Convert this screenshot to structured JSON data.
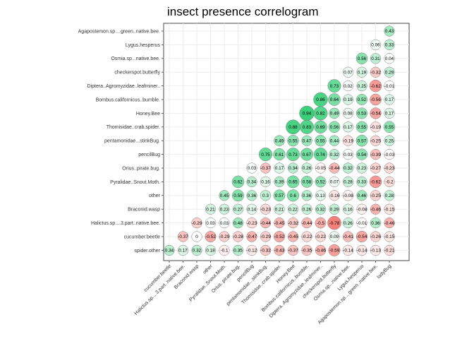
{
  "chart_data": {
    "type": "correlogram",
    "title": "insect presence correlogram",
    "grid": true,
    "colors": {
      "positive": "#2ecc71",
      "negative": "#f25c54",
      "neutral": "#ffffff"
    },
    "row_labels": [
      "Agapostemon.sp....green..native.bee.",
      "Lygus.hesperus",
      "Osmia.sp...native.bee.",
      "checkerspot.butterfly",
      "Diptera..Agromyzidae..leafminer..",
      "Bombus.californicus..bumble.",
      "Honey.Bee",
      "Thomisidae..crab.spider.",
      "pentamonidae...stinkBug.",
      "pencilBug",
      "Orius..pirate.bug.",
      "Pyralidae..Snout.Moth.",
      "other",
      "Braconid.wasp",
      "Halictus.sp....3.part..native.bee.",
      "cucumber.beetle",
      "spider.other"
    ],
    "col_labels": [
      "cucumber.beetle",
      "Halictus.sp....3.part..native.bee.",
      "Braconid.wasp",
      "other",
      "Pyralidae..Snout.Moth.",
      "Orius..pirate.bug.",
      "pencilBug",
      "pentamonidae...stinkBug.",
      "Thomisidae..crab.spider.",
      "Honey.Bee",
      "Bombus.californicus..bumble.",
      "Diptera..Agromyzidae..leafminer..",
      "checkerspot.butterfly",
      "Osmia.sp...native.bee.",
      "Lygus.hesperus",
      "Agapostemon.sp....green..native.bee.",
      "ladyBug"
    ],
    "values": [
      [
        null,
        null,
        null,
        null,
        null,
        null,
        null,
        null,
        null,
        null,
        null,
        null,
        null,
        null,
        null,
        null,
        0.43
      ],
      [
        null,
        null,
        null,
        null,
        null,
        null,
        null,
        null,
        null,
        null,
        null,
        null,
        null,
        null,
        null,
        0.06,
        0.33
      ],
      [
        null,
        null,
        null,
        null,
        null,
        null,
        null,
        null,
        null,
        null,
        null,
        null,
        null,
        null,
        0.56,
        0.31,
        0.04
      ],
      [
        null,
        null,
        null,
        null,
        null,
        null,
        null,
        null,
        null,
        null,
        null,
        null,
        null,
        0.07,
        0.19,
        -0.32,
        0.29
      ],
      [
        null,
        null,
        null,
        null,
        null,
        null,
        null,
        null,
        null,
        null,
        null,
        null,
        0.73,
        0.02,
        0.25,
        -0.62,
        -0.01
      ],
      [
        null,
        null,
        null,
        null,
        null,
        null,
        null,
        null,
        null,
        null,
        null,
        0.86,
        0.64,
        0.19,
        0.52,
        -0.56,
        0.17
      ],
      [
        null,
        null,
        null,
        null,
        null,
        null,
        null,
        null,
        null,
        null,
        0.94,
        0.82,
        0.49,
        0.08,
        0.53,
        -0.54,
        0.17
      ],
      [
        null,
        null,
        null,
        null,
        null,
        null,
        null,
        null,
        null,
        0.88,
        0.83,
        0.69,
        0.56,
        0.17,
        0.55,
        -0.19,
        0.55
      ],
      [
        null,
        null,
        null,
        null,
        null,
        null,
        null,
        null,
        0.49,
        0.55,
        0.47,
        0.55,
        0.44,
        -0.19,
        0.57,
        -0.25,
        0.25
      ],
      [
        null,
        null,
        null,
        null,
        null,
        null,
        null,
        0.75,
        0.61,
        0.73,
        0.67,
        0.74,
        0.32,
        0.03,
        0.54,
        -0.39,
        -0.03
      ],
      [
        null,
        null,
        null,
        null,
        null,
        null,
        0.03,
        -0.37,
        0.17,
        0.34,
        0.26,
        -0.05,
        -0.44,
        0.32,
        0.23,
        -0.27,
        -0.23
      ],
      [
        null,
        null,
        null,
        null,
        null,
        0.62,
        0.34,
        0.16,
        0.39,
        0.65,
        0.58,
        0.52,
        0.07,
        0.28,
        0.33,
        -0.62,
        -0.2
      ],
      [
        null,
        null,
        null,
        null,
        0.45,
        0.59,
        0.36,
        0.3,
        0.57,
        0.6,
        0.36,
        0.13,
        -0.16,
        -0.08,
        0.46,
        -0.25,
        0.28
      ],
      [
        null,
        null,
        null,
        0.21,
        0.23,
        0.27,
        0.14,
        -0.23,
        0.21,
        0.22,
        0.26,
        0.32,
        0.29,
        0.16,
        -0.08,
        -0.46,
        -0.15
      ],
      [
        null,
        null,
        -0.29,
        0.03,
        0.03,
        0.48,
        -0.23,
        -0.44,
        -0.45,
        -0.32,
        -0.44,
        -0.5,
        -0.78,
        0.26,
        -0.01,
        0.36,
        -0.46
      ],
      [
        null,
        -0.37,
        0,
        -0.52,
        -0.29,
        -0.28,
        -0.47,
        -0.29,
        -0.52,
        -0.45,
        -0.22,
        -0.22,
        0.09,
        -0.41,
        -0.54,
        -0.26,
        -0.15
      ],
      [
        0.34,
        0.17,
        0.32,
        0.18,
        -0.1,
        0.35,
        -0.12,
        -0.32,
        -0.43,
        -0.37,
        -0.35,
        -0.46,
        -0.59,
        -0.14,
        -0.14,
        -0.13,
        -0.21
      ]
    ]
  }
}
